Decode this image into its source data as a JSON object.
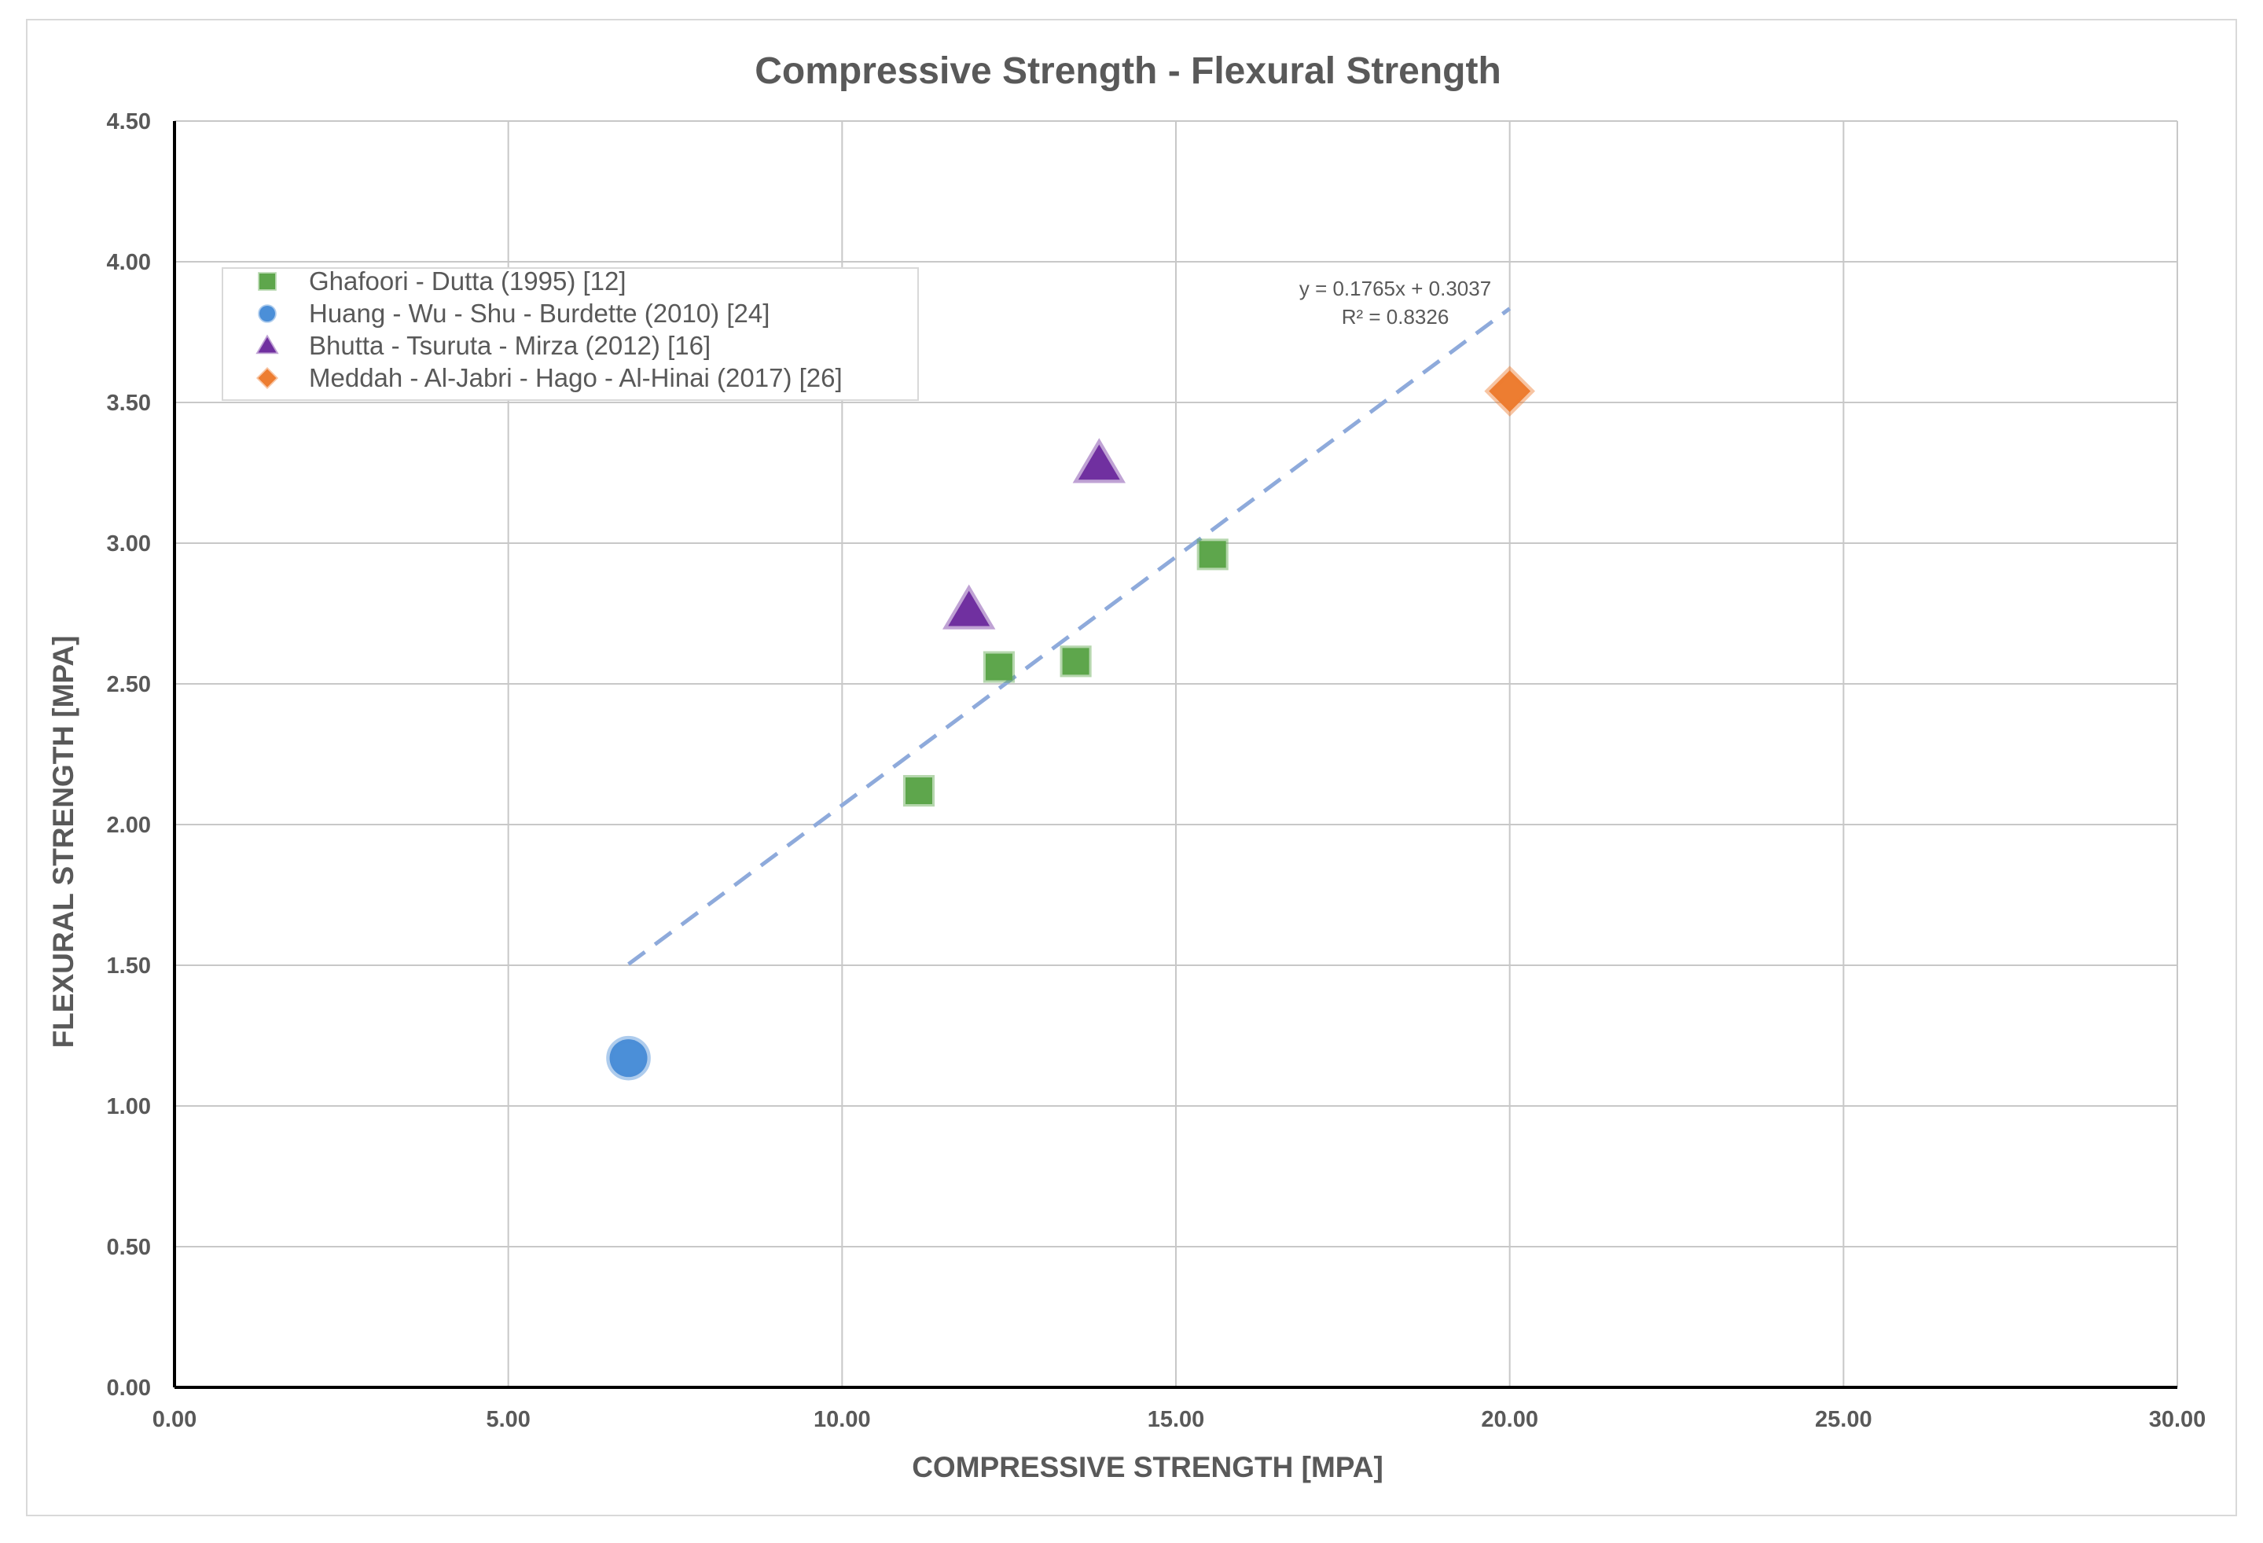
{
  "chart_data": {
    "type": "scatter",
    "title": "Compressive Strength - Flexural Strength",
    "xlabel": "COMPRESSIVE STRENGTH [MPA]",
    "ylabel": "FLEXURAL STRENGTH [MPA]",
    "xlim": [
      0,
      30
    ],
    "ylim": [
      0,
      4.5
    ],
    "grid": true,
    "legend_position": "top-left",
    "x_ticks": [
      "0.00",
      "5.00",
      "10.00",
      "15.00",
      "20.00",
      "25.00",
      "30.00"
    ],
    "y_ticks": [
      "0.00",
      "0.50",
      "1.00",
      "1.50",
      "2.00",
      "2.50",
      "3.00",
      "3.50",
      "4.00",
      "4.50"
    ],
    "series": [
      {
        "name": "Ghafoori - Dutta (1995) [12]",
        "marker": "square",
        "color": "#5ea64c",
        "points": [
          [
            11.15,
            2.12
          ],
          [
            12.35,
            2.56
          ],
          [
            13.5,
            2.58
          ],
          [
            15.55,
            2.96
          ]
        ]
      },
      {
        "name": "Huang - Wu - Shu - Burdette (2010) [24]",
        "marker": "circle",
        "color": "#4b8fd8",
        "points": [
          [
            6.8,
            1.17
          ]
        ]
      },
      {
        "name": "Bhutta - Tsuruta - Mirza (2012) [16]",
        "marker": "triangle",
        "color": "#7030a0",
        "points": [
          [
            11.9,
            2.76
          ],
          [
            13.85,
            3.28
          ]
        ]
      },
      {
        "name": "Meddah - Al-Jabri - Hago - Al-Hinai (2017) [26]",
        "marker": "diamond",
        "color": "#ed7d31",
        "points": [
          [
            20.0,
            3.54
          ]
        ]
      }
    ],
    "trendline": {
      "x_range": [
        6.8,
        20.0
      ],
      "slope": 0.1765,
      "intercept": 0.3037,
      "color": "#8eaadb",
      "equation": "y = 0.1765x + 0.3037",
      "r_squared": "R² = 0.8326"
    }
  }
}
